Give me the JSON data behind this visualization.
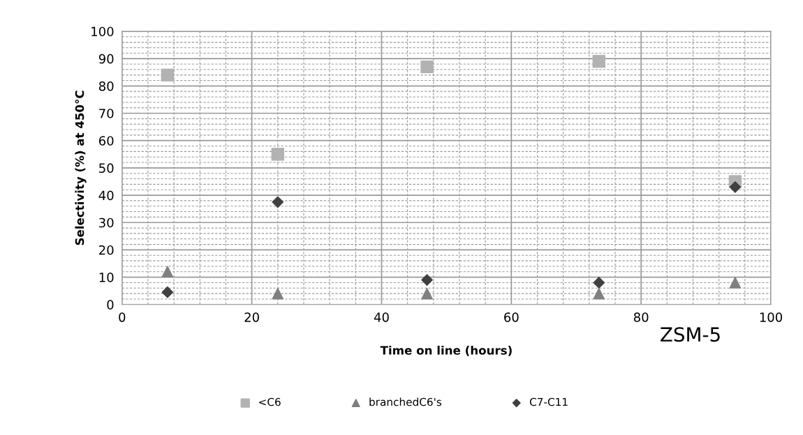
{
  "chart_data": {
    "type": "scatter",
    "xlabel": "Time on line (hours)",
    "ylabel": "Selectivity (%) at 450°C",
    "x": [
      7,
      24,
      47,
      73.5,
      94.5
    ],
    "series": [
      {
        "name": "<C6",
        "color": "#b2b2b2",
        "marker": "square",
        "values": [
          84,
          55,
          87,
          89,
          45
        ]
      },
      {
        "name": "branchedC6's",
        "color": "#808080",
        "marker": "triangle",
        "values": [
          12,
          4,
          4,
          4,
          8
        ]
      },
      {
        "name": "C7-C11",
        "color": "#404040",
        "marker": "diamond",
        "values": [
          4.5,
          37.5,
          9,
          8,
          43
        ]
      }
    ],
    "xlim": [
      0,
      100
    ],
    "xticks": [
      0,
      20,
      40,
      60,
      80,
      100
    ],
    "ylim": [
      0,
      100
    ],
    "yticks": [
      0,
      10,
      20,
      30,
      40,
      50,
      60,
      70,
      80,
      90,
      100
    ],
    "grid": true,
    "legend": "bottom",
    "annotations": [
      "ZSM-5"
    ]
  }
}
